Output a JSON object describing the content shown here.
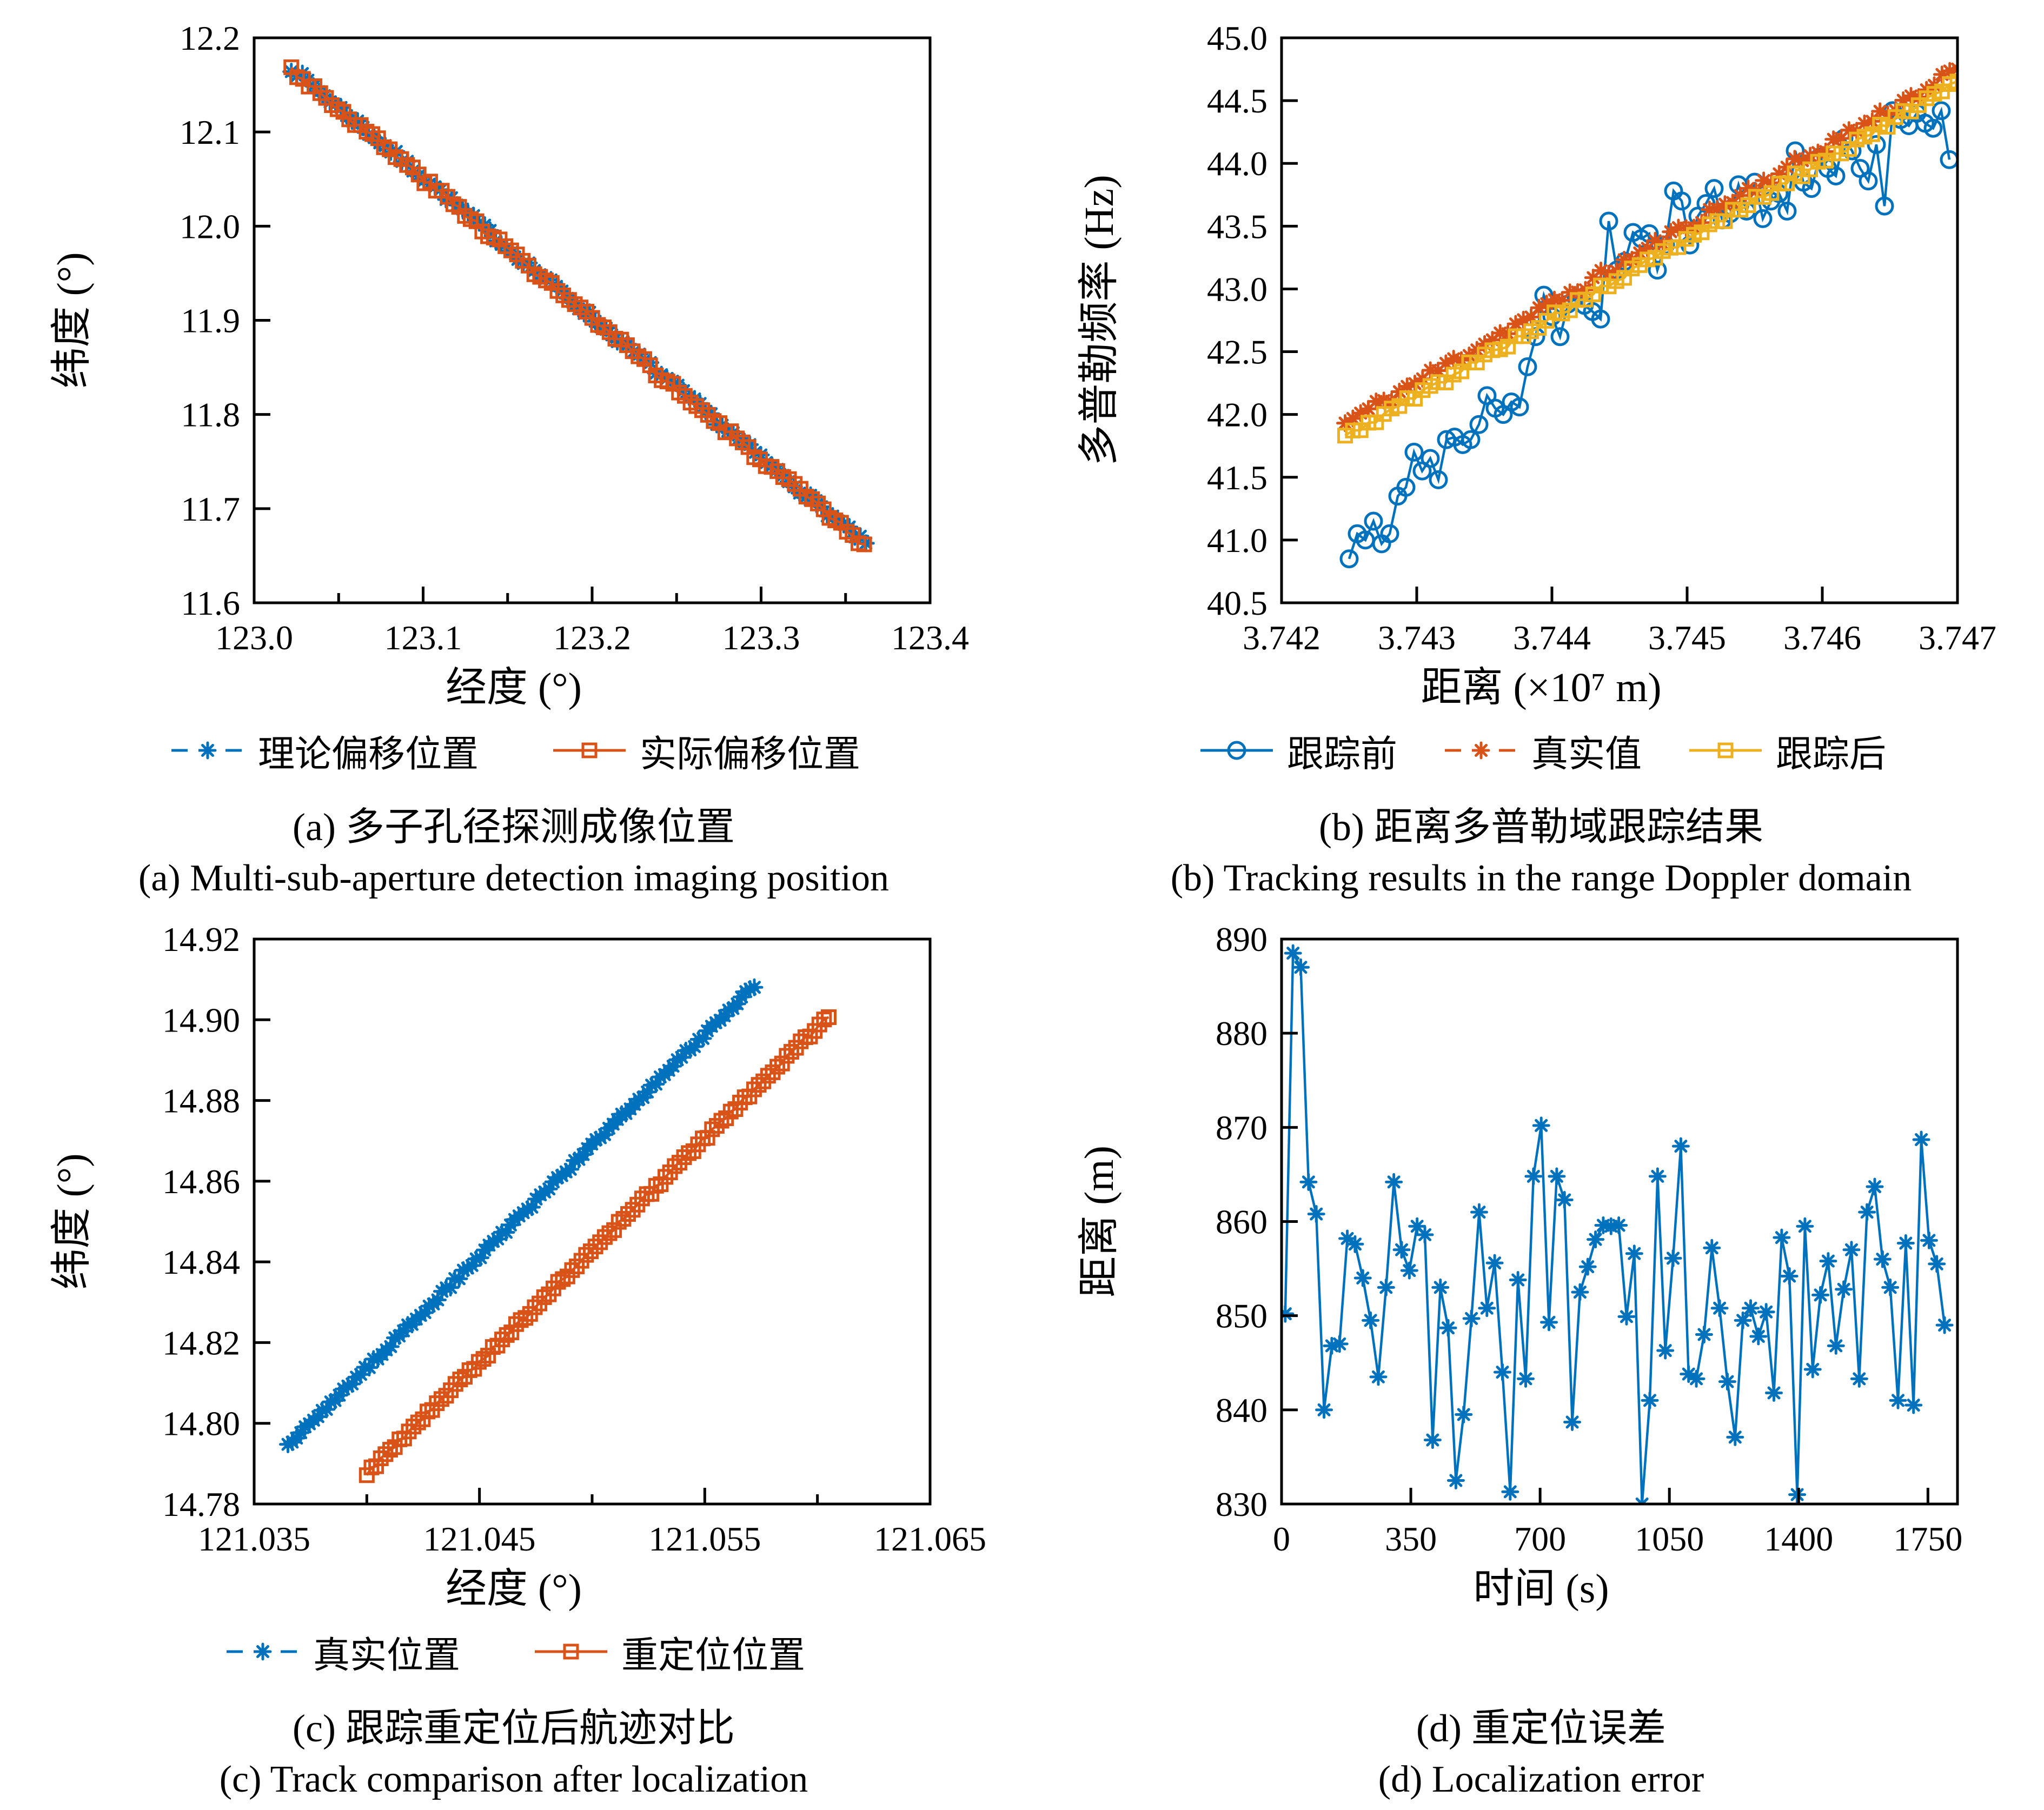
{
  "page": {
    "background": "#ffffff"
  },
  "colors": {
    "blue": "#0072BD",
    "orange": "#D95319",
    "yellow": "#EDB120",
    "axis": "#000000"
  },
  "chart_data": [
    {
      "id": "a",
      "type": "line",
      "xlabel": "经度 (°)",
      "ylabel": "纬度 (°)",
      "caption_zh": "(a) 多子孔径探测成像位置",
      "caption_en": "(a) Multi-sub-aperture detection imaging position",
      "xlim": [
        123.0,
        123.4
      ],
      "ylim": [
        11.6,
        12.2
      ],
      "grid": false,
      "legend_position": "below",
      "xticks": {
        "values": [
          123.0,
          123.05,
          123.1,
          123.15,
          123.2,
          123.25,
          123.3,
          123.35,
          123.4
        ],
        "labels": [
          "123.0",
          "",
          "123.1",
          "",
          "123.2",
          "",
          "123.3",
          "",
          "123.4"
        ]
      },
      "yticks": {
        "values": [
          11.6,
          11.7,
          11.8,
          11.9,
          12.0,
          12.1,
          12.2
        ],
        "labels": [
          "11.6",
          "11.7",
          "11.8",
          "11.9",
          "12.0",
          "12.1",
          "12.2"
        ]
      },
      "series": [
        {
          "name": "理论偏移位置",
          "color": "#0072BD",
          "marker": "asterisk",
          "line": "dashed",
          "gen": {
            "x_start": 123.022,
            "x_end": 123.362,
            "y_start": 12.168,
            "y_end": 11.662,
            "n": 105,
            "jitter": 0.004,
            "seed": 7
          }
        },
        {
          "name": "实际偏移位置",
          "color": "#D95319",
          "marker": "square",
          "line": "solid",
          "gen": {
            "x_start": 123.022,
            "x_end": 123.361,
            "y_start": 12.167,
            "y_end": 11.661,
            "n": 100,
            "jitter": 0.004,
            "seed": 3
          }
        }
      ]
    },
    {
      "id": "b",
      "type": "line",
      "xlabel": "距离 (×10⁷ m)",
      "ylabel": "多普勒频率 (Hz)",
      "caption_zh": "(b) 距离多普勒域跟踪结果",
      "caption_en": "(b) Tracking results in the range Doppler domain",
      "xlim": [
        3.742,
        3.747
      ],
      "ylim": [
        40.5,
        45.0
      ],
      "grid": false,
      "legend_position": "below",
      "xticks": {
        "values": [
          3.742,
          3.743,
          3.744,
          3.745,
          3.746,
          3.747
        ],
        "labels": [
          "3.742",
          "3.743",
          "3.744",
          "3.745",
          "3.746",
          "3.747"
        ]
      },
      "yticks": {
        "values": [
          40.5,
          41.0,
          41.5,
          42.0,
          42.5,
          43.0,
          43.5,
          44.0,
          44.5,
          45.0
        ],
        "labels": [
          "40.5",
          "41.0",
          "41.5",
          "42.0",
          "42.5",
          "43.0",
          "43.5",
          "44.0",
          "44.5",
          "45.0"
        ]
      },
      "series": [
        {
          "name": "跟踪前",
          "color": "#0072BD",
          "marker": "circle",
          "line": "solid",
          "x_start": 3.7425,
          "x_step": 6e-05,
          "y": [
            40.85,
            41.05,
            41.0,
            41.15,
            40.97,
            41.05,
            41.35,
            41.42,
            41.7,
            41.55,
            41.65,
            41.48,
            41.8,
            41.82,
            41.76,
            41.8,
            41.92,
            42.15,
            42.05,
            42.0,
            42.1,
            42.06,
            42.38,
            42.62,
            42.95,
            42.78,
            42.62,
            42.88,
            42.93,
            42.87,
            42.82,
            42.76,
            43.54,
            43.15,
            43.22,
            43.45,
            43.4,
            43.44,
            43.15,
            43.35,
            43.78,
            43.7,
            43.35,
            43.58,
            43.68,
            43.8,
            43.55,
            43.6,
            43.83,
            43.62,
            43.85,
            43.56,
            43.7,
            43.76,
            43.62,
            44.1,
            43.85,
            43.8,
            44.05,
            43.96,
            43.9,
            44.2,
            44.1,
            43.96,
            43.86,
            44.15,
            43.66,
            44.42,
            44.35,
            44.3,
            44.4,
            44.32,
            44.28,
            44.42,
            44.03
          ]
        },
        {
          "name": "真实值",
          "color": "#D95319",
          "marker": "asterisk",
          "line": "dashed",
          "gen": {
            "x_start": 3.74247,
            "x_end": 3.747,
            "y_start": 41.93,
            "y_end": 44.74,
            "n": 80,
            "jitter": 0.045,
            "seed": 11
          }
        },
        {
          "name": "跟踪后",
          "color": "#EDB120",
          "marker": "square",
          "line": "solid",
          "gen": {
            "x_start": 3.74247,
            "x_end": 3.747,
            "y_start": 41.82,
            "y_end": 44.64,
            "n": 80,
            "jitter": 0.03,
            "seed": 5
          }
        }
      ]
    },
    {
      "id": "c",
      "type": "line",
      "xlabel": "经度 (°)",
      "ylabel": "纬度 (°)",
      "caption_zh": "(c) 跟踪重定位后航迹对比",
      "caption_en": "(c) Track comparison after localization",
      "xlim": [
        121.035,
        121.065
      ],
      "ylim": [
        14.78,
        14.92
      ],
      "grid": false,
      "legend_position": "below",
      "xticks": {
        "values": [
          121.035,
          121.04,
          121.045,
          121.05,
          121.055,
          121.06,
          121.065
        ],
        "labels": [
          "121.035",
          "",
          "121.045",
          "",
          "121.055",
          "",
          "121.065"
        ]
      },
      "yticks": {
        "values": [
          14.78,
          14.8,
          14.82,
          14.84,
          14.86,
          14.88,
          14.9,
          14.92
        ],
        "labels": [
          "14.78",
          "14.80",
          "14.82",
          "14.84",
          "14.86",
          "14.88",
          "14.90",
          "14.92"
        ]
      },
      "series": [
        {
          "name": "真实位置",
          "color": "#0072BD",
          "marker": "asterisk",
          "line": "dashed",
          "gen": {
            "x_start": 121.0365,
            "x_end": 121.0572,
            "y_start": 14.7945,
            "y_end": 14.9085,
            "n": 110,
            "jitter": 0.0006,
            "seed": 2
          }
        },
        {
          "name": "重定位位置",
          "color": "#D95319",
          "marker": "square",
          "line": "solid",
          "gen": {
            "x_start": 121.04,
            "x_end": 121.0605,
            "y_start": 14.7875,
            "y_end": 14.901,
            "n": 100,
            "jitter": 0.0006,
            "seed": 9
          }
        }
      ]
    },
    {
      "id": "d",
      "type": "line",
      "xlabel": "时间 (s)",
      "ylabel": "距离 (m)",
      "caption_zh": "(d) 重定位误差",
      "caption_en": "(d) Localization error",
      "xlim": [
        0,
        1830
      ],
      "ylim": [
        830,
        890
      ],
      "grid": false,
      "legend_position": "none",
      "xticks": {
        "values": [
          0,
          350,
          700,
          1050,
          1400,
          1750
        ],
        "labels": [
          "0",
          "350",
          "700",
          "1050",
          "1400",
          "1750"
        ]
      },
      "yticks": {
        "values": [
          830,
          840,
          850,
          860,
          870,
          880,
          890
        ],
        "labels": [
          "830",
          "840",
          "850",
          "860",
          "870",
          "880",
          "890"
        ]
      },
      "series": [
        {
          "name": "重定位误差",
          "show_in_legend": false,
          "color": "#0072BD",
          "marker": "asterisk",
          "line": "solid",
          "x_start": 10,
          "x_step": 21,
          "y": [
            850.2,
            888.5,
            887.0,
            864.2,
            860.8,
            840.0,
            846.8,
            847.0,
            858.2,
            857.6,
            854.0,
            849.5,
            843.5,
            853.0,
            864.2,
            857.0,
            854.8,
            859.5,
            858.6,
            836.8,
            853.0,
            848.7,
            832.5,
            839.5,
            849.7,
            861.0,
            850.8,
            855.6,
            844.0,
            831.3,
            853.8,
            843.3,
            864.8,
            870.2,
            849.3,
            864.8,
            862.3,
            838.7,
            852.5,
            855.2,
            858.1,
            859.6,
            859.5,
            859.6,
            849.9,
            856.6,
            830.0,
            841.0,
            864.8,
            846.3,
            856.1,
            868.0,
            843.8,
            843.3,
            848.0,
            857.2,
            850.8,
            843.0,
            837.1,
            849.5,
            850.8,
            847.8,
            850.4,
            841.8,
            858.3,
            854.2,
            831.0,
            859.5,
            844.3,
            852.2,
            855.8,
            846.8,
            852.8,
            857.0,
            843.3,
            861.0,
            863.7,
            856.0,
            853.0,
            841.0,
            857.7,
            840.5,
            868.7,
            858.0,
            855.5,
            849.0
          ]
        }
      ]
    }
  ]
}
